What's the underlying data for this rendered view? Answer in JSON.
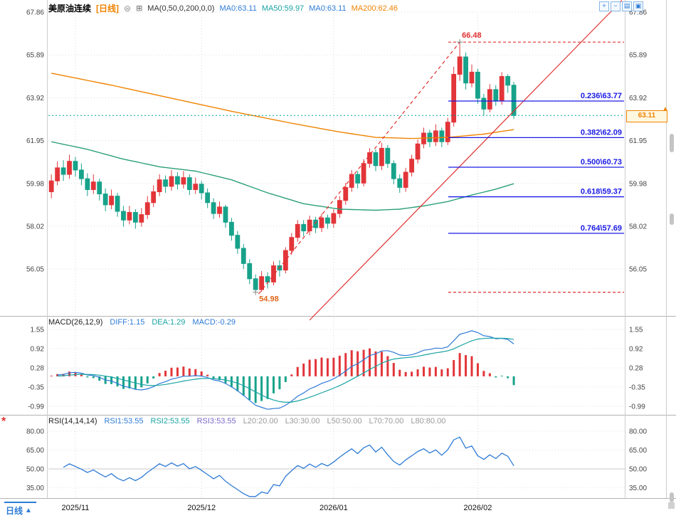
{
  "header": {
    "symbol": "美原油连续",
    "period": "[日线]",
    "settings_glyph": "⊜",
    "indicator_glyph": "⊞",
    "ma_label": "MA(0,50,0,200,0,0)",
    "ma_values": [
      {
        "text": "MA0:63.11",
        "color": "#2e7bd6"
      },
      {
        "text": "MA50:59.97",
        "color": "#1aa3a3"
      },
      {
        "text": "MA0:63.11",
        "color": "#2e7bd6"
      },
      {
        "text": "MA200:62.46",
        "color": "#f08300"
      }
    ]
  },
  "toolbar": {
    "icons": [
      {
        "name": "zoom-in",
        "glyph": "+"
      },
      {
        "name": "zoom-out",
        "glyph": "−"
      },
      {
        "name": "pane-list",
        "glyph": "▤"
      },
      {
        "name": "pane-grid",
        "glyph": "▣"
      }
    ]
  },
  "price_axis": {
    "current_price": "63.11",
    "arrow_glyph": "▲"
  },
  "macd_header": {
    "title": "MACD(26,12,9)",
    "values": [
      {
        "text": "DIFF:1.15",
        "color": "#2e7bd6"
      },
      {
        "text": "DEA:1.29",
        "color": "#1aa3a3"
      },
      {
        "text": "MACD:-0.29",
        "color": "#2e7bd6"
      }
    ]
  },
  "rsi_header": {
    "title": "RSI(14,14,14)",
    "values": [
      {
        "text": "RSI1:53.55",
        "color": "#2e7bd6"
      },
      {
        "text": "RSI2:53.55",
        "color": "#1aa3a3"
      },
      {
        "text": "RSI3:53.55",
        "color": "#7b68c8"
      }
    ],
    "levels": [
      {
        "text": "L20:20.00"
      },
      {
        "text": "L30:30.00"
      },
      {
        "text": "L50:50.00"
      },
      {
        "text": "L70:70.00"
      },
      {
        "text": "L80:80.00"
      }
    ]
  },
  "x_axis": {
    "labels": [
      {
        "text": "2025/11",
        "index": 4
      },
      {
        "text": "2025/12",
        "index": 25
      },
      {
        "text": "2026/01",
        "index": 47
      },
      {
        "text": "2026/02",
        "index": 71
      }
    ]
  },
  "bottom_tab": {
    "label": "日线",
    "arrow": "▲"
  },
  "left_icon": {
    "glyph": "*"
  },
  "colors": {
    "up": "#e23539",
    "down": "#17a28a",
    "ma50": "#2aa077",
    "ma200": "#f08300",
    "fib": "#1a1ae6",
    "red_line": "#e03030",
    "low_annot": "#e0661a",
    "current": "#00a2a2",
    "diff": "#2e7bd6",
    "dea": "#1aa3a3",
    "rsi": "#2e7bd6",
    "accent_orange": "#f08300",
    "accent_blue": "#2e7bd6"
  },
  "chart_data": {
    "type": "candlestick",
    "title": "美原油连续 日线",
    "price_ticks": [
      67.86,
      65.89,
      63.92,
      61.95,
      59.98,
      58.02,
      56.05
    ],
    "macd_ticks": [
      1.55,
      0.92,
      0.28,
      -0.35,
      -0.99
    ],
    "rsi_ticks": [
      80,
      65,
      50,
      35
    ],
    "candles": [
      [
        59.6,
        60.4,
        59.3,
        60.1
      ],
      [
        60.1,
        61.0,
        59.9,
        60.7
      ],
      [
        60.7,
        61.05,
        60.1,
        60.4
      ],
      [
        60.4,
        61.3,
        60.2,
        61.0
      ],
      [
        61.0,
        61.2,
        60.3,
        60.6
      ],
      [
        60.6,
        60.9,
        59.9,
        60.2
      ],
      [
        60.2,
        60.45,
        59.4,
        59.7
      ],
      [
        59.7,
        60.4,
        59.5,
        60.05
      ],
      [
        60.05,
        60.2,
        59.2,
        59.5
      ],
      [
        59.5,
        59.75,
        58.7,
        59.0
      ],
      [
        59.0,
        59.7,
        58.8,
        59.4
      ],
      [
        59.4,
        59.55,
        58.45,
        58.7
      ],
      [
        58.7,
        58.95,
        58.0,
        58.3
      ],
      [
        58.3,
        58.95,
        58.1,
        58.65
      ],
      [
        58.65,
        58.8,
        57.9,
        58.2
      ],
      [
        58.2,
        58.85,
        58.0,
        58.55
      ],
      [
        58.55,
        59.4,
        58.35,
        59.1
      ],
      [
        59.1,
        59.9,
        58.9,
        59.6
      ],
      [
        59.6,
        60.4,
        59.4,
        60.15
      ],
      [
        60.15,
        60.35,
        59.55,
        59.85
      ],
      [
        59.85,
        60.6,
        59.65,
        60.3
      ],
      [
        60.3,
        60.5,
        59.7,
        59.95
      ],
      [
        59.95,
        60.55,
        59.75,
        60.25
      ],
      [
        60.25,
        60.4,
        59.45,
        59.7
      ],
      [
        59.7,
        60.25,
        59.5,
        59.95
      ],
      [
        59.95,
        60.1,
        59.25,
        59.55
      ],
      [
        59.55,
        59.75,
        58.85,
        59.1
      ],
      [
        59.1,
        59.3,
        58.35,
        58.6
      ],
      [
        58.6,
        59.15,
        58.4,
        58.9
      ],
      [
        58.9,
        59.0,
        57.95,
        58.2
      ],
      [
        58.2,
        58.4,
        57.35,
        57.6
      ],
      [
        57.6,
        57.8,
        56.75,
        57.0
      ],
      [
        57.0,
        57.2,
        56.05,
        56.3
      ],
      [
        56.3,
        56.5,
        55.35,
        55.6
      ],
      [
        55.6,
        55.8,
        54.98,
        55.1
      ],
      [
        55.1,
        55.95,
        55.0,
        55.7
      ],
      [
        55.7,
        55.9,
        55.15,
        55.45
      ],
      [
        55.45,
        56.4,
        55.3,
        56.2
      ],
      [
        56.2,
        56.45,
        55.7,
        56.0
      ],
      [
        56.0,
        57.05,
        55.85,
        56.9
      ],
      [
        56.9,
        57.7,
        56.7,
        57.5
      ],
      [
        57.5,
        58.3,
        57.3,
        58.1
      ],
      [
        58.1,
        58.3,
        57.55,
        57.8
      ],
      [
        57.8,
        58.5,
        57.6,
        58.3
      ],
      [
        58.3,
        58.45,
        57.7,
        57.95
      ],
      [
        57.95,
        58.6,
        57.75,
        58.4
      ],
      [
        58.4,
        58.55,
        57.9,
        58.15
      ],
      [
        58.15,
        58.8,
        57.95,
        58.6
      ],
      [
        58.6,
        59.4,
        58.4,
        59.2
      ],
      [
        59.2,
        60.0,
        59.0,
        59.8
      ],
      [
        59.8,
        60.6,
        59.6,
        60.4
      ],
      [
        60.4,
        60.55,
        59.75,
        60.0
      ],
      [
        60.0,
        61.1,
        59.85,
        60.9
      ],
      [
        60.9,
        61.6,
        60.7,
        61.4
      ],
      [
        61.4,
        61.55,
        60.55,
        60.8
      ],
      [
        60.8,
        61.85,
        60.6,
        61.6
      ],
      [
        61.6,
        61.75,
        60.7,
        60.9
      ],
      [
        60.9,
        61.05,
        59.95,
        60.2
      ],
      [
        60.2,
        60.4,
        59.55,
        59.8
      ],
      [
        59.8,
        60.7,
        59.6,
        60.5
      ],
      [
        60.5,
        61.3,
        60.3,
        61.1
      ],
      [
        61.1,
        62.0,
        60.9,
        61.8
      ],
      [
        61.8,
        62.55,
        61.6,
        62.3
      ],
      [
        62.3,
        62.45,
        61.65,
        61.9
      ],
      [
        61.9,
        62.7,
        61.7,
        62.4
      ],
      [
        62.4,
        62.55,
        61.65,
        61.9
      ],
      [
        61.9,
        63.0,
        61.75,
        62.8
      ],
      [
        62.8,
        65.35,
        62.6,
        65.0
      ],
      [
        65.0,
        66.48,
        64.7,
        65.8
      ],
      [
        65.8,
        66.0,
        64.3,
        64.6
      ],
      [
        64.6,
        65.45,
        64.4,
        65.1
      ],
      [
        65.1,
        65.25,
        63.65,
        63.9
      ],
      [
        63.9,
        64.1,
        63.1,
        63.4
      ],
      [
        63.4,
        64.55,
        63.25,
        64.3
      ],
      [
        64.3,
        64.5,
        63.55,
        63.8
      ],
      [
        63.8,
        65.1,
        63.6,
        64.9
      ],
      [
        64.9,
        65.0,
        64.15,
        64.5
      ],
      [
        64.5,
        64.65,
        62.95,
        63.11
      ]
    ],
    "ma200_points": [
      [
        0,
        65.05
      ],
      [
        10,
        64.5
      ],
      [
        20,
        63.9
      ],
      [
        30,
        63.3
      ],
      [
        40,
        62.75
      ],
      [
        48,
        62.35
      ],
      [
        54,
        62.1
      ],
      [
        60,
        62.05
      ],
      [
        66,
        62.1
      ],
      [
        72,
        62.25
      ],
      [
        77,
        62.46
      ]
    ],
    "ma50_points": [
      [
        0,
        61.9
      ],
      [
        6,
        61.55
      ],
      [
        12,
        61.1
      ],
      [
        18,
        60.75
      ],
      [
        24,
        60.55
      ],
      [
        30,
        60.15
      ],
      [
        36,
        59.55
      ],
      [
        42,
        59.05
      ],
      [
        48,
        58.8
      ],
      [
        54,
        58.75
      ],
      [
        58,
        58.8
      ],
      [
        62,
        58.95
      ],
      [
        66,
        59.15
      ],
      [
        70,
        59.45
      ],
      [
        74,
        59.72
      ],
      [
        77,
        59.97
      ]
    ],
    "fib_levels": [
      {
        "label": "0.236\\63.77",
        "price": 63.77
      },
      {
        "label": "0.382\\62.09",
        "price": 62.09
      },
      {
        "label": "0.500\\60.73",
        "price": 60.73
      },
      {
        "label": "0.618\\59.37",
        "price": 59.37
      },
      {
        "label": "0.764\\57.69",
        "price": 57.69
      }
    ],
    "annotations": {
      "high": {
        "text": "66.48",
        "price": 66.48,
        "index": 68
      },
      "low": {
        "text": "54.98",
        "price": 54.98,
        "index": 34
      }
    },
    "trend_lines": [
      {
        "from": [
          34.5,
          54.9
        ],
        "to": [
          68,
          66.48
        ],
        "style": "dashed"
      },
      {
        "from": [
          43.0,
          53.7
        ],
        "to": [
          95,
          68.4
        ],
        "style": "solid"
      }
    ],
    "indicator_params": {
      "macd": [
        26,
        12,
        9
      ],
      "rsi": 14
    }
  }
}
